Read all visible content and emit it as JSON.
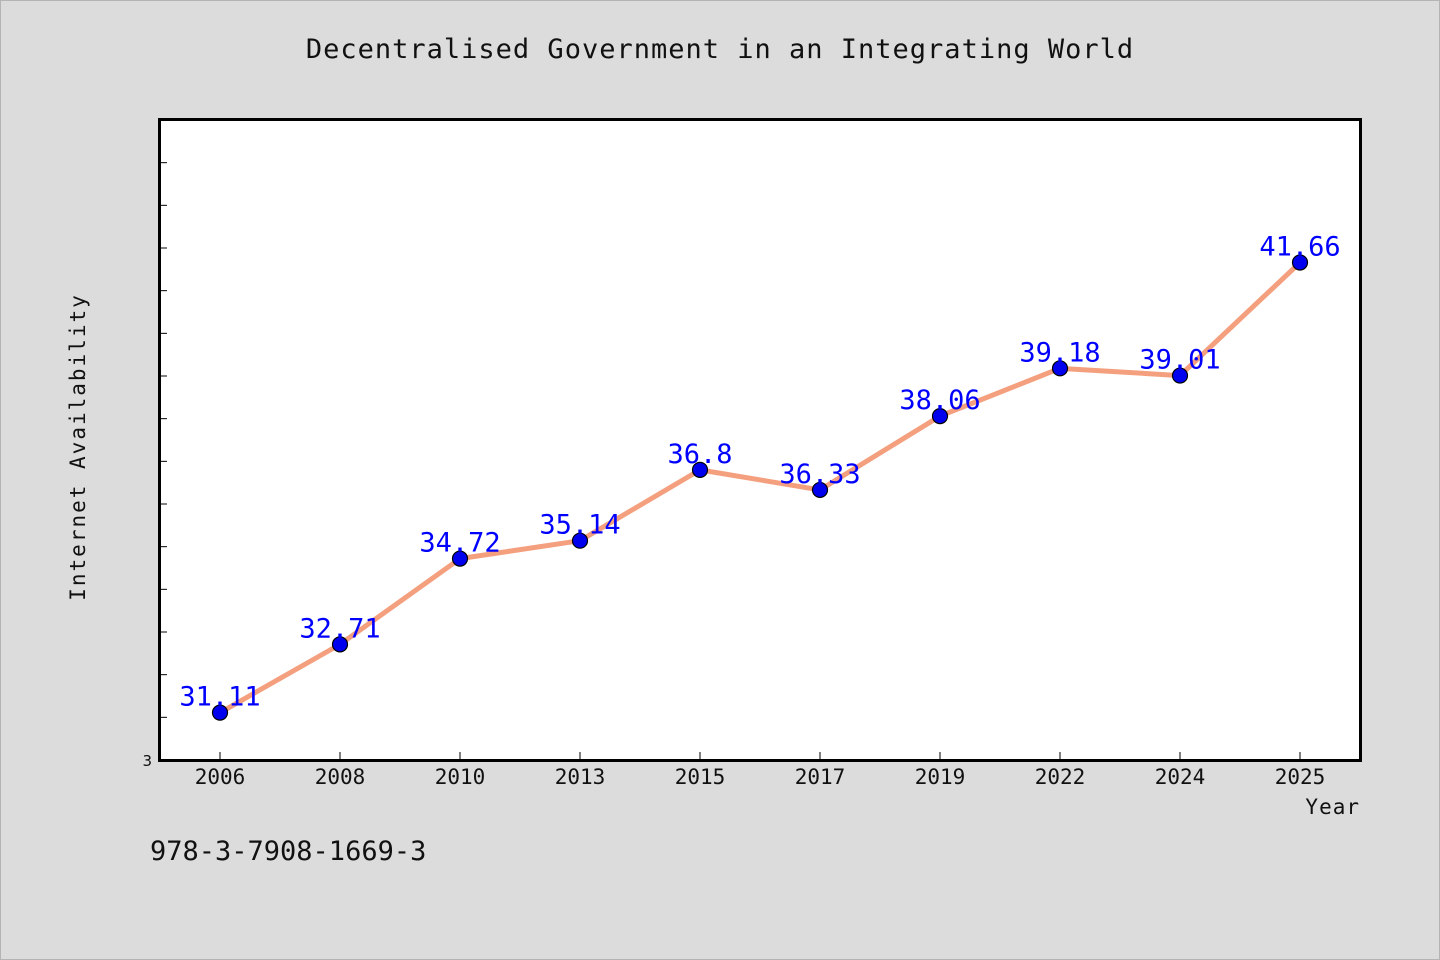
{
  "chart_data": {
    "type": "line",
    "title": "Decentralised Government in an Integrating World",
    "xlabel": "Year",
    "ylabel": "Internet Availability",
    "categories": [
      "2006",
      "2008",
      "2010",
      "2013",
      "2015",
      "2017",
      "2019",
      "2022",
      "2024",
      "2025"
    ],
    "series": [
      {
        "values": [
          31.11,
          32.71,
          34.72,
          35.14,
          36.8,
          36.33,
          38.06,
          39.18,
          39.01,
          41.66
        ],
        "line_color": "#f4a07f",
        "marker_color": "#0000ee",
        "label_color": "#0000ff"
      }
    ],
    "y_tick_label": "3",
    "ylim": [
      30,
      45
    ],
    "y_minor_step": 1,
    "grid": false
  },
  "footer": {
    "isbn": "978-3-7908-1669-3"
  }
}
